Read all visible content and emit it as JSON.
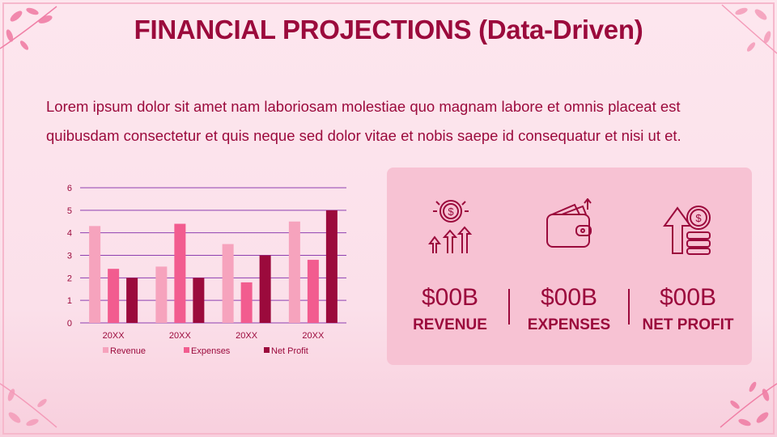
{
  "title": "FINANCIAL PROJECTIONS (Data-Driven)",
  "intro": "Lorem ipsum dolor sit amet nam laboriosam molestiae quo magnam labore et omnis placeat est quibusdam consectetur et quis neque sed dolor vitae et nobis saepe id consequatur et nisi ut et.",
  "colors": {
    "accent": "#9b0a3c",
    "revenue": "#f6a3bd",
    "expenses": "#f25c8f",
    "net_profit": "#9b0a3c",
    "panel": "#f7c2d3",
    "gridline": "#8e3fb0"
  },
  "kpis": [
    {
      "value": "$00B",
      "label": "REVENUE",
      "icon": "coin-growth-icon"
    },
    {
      "value": "$00B",
      "label": "EXPENSES",
      "icon": "wallet-icon"
    },
    {
      "value": "$00B",
      "label": "NET PROFIT",
      "icon": "profit-arrow-coins-icon"
    }
  ],
  "chart_data": {
    "type": "bar",
    "categories": [
      "20XX",
      "20XX",
      "20XX",
      "20XX"
    ],
    "series": [
      {
        "name": "Revenue",
        "values": [
          4.3,
          2.5,
          3.5,
          4.5
        ]
      },
      {
        "name": "Expenses",
        "values": [
          2.4,
          4.4,
          1.8,
          2.8
        ]
      },
      {
        "name": "Net Profit",
        "values": [
          2,
          2,
          3,
          5
        ]
      }
    ],
    "ylim": [
      0,
      6
    ],
    "yticks": [
      "0",
      "1",
      "2",
      "3",
      "4",
      "5",
      "6"
    ],
    "grid": true,
    "legend": "bottom"
  }
}
